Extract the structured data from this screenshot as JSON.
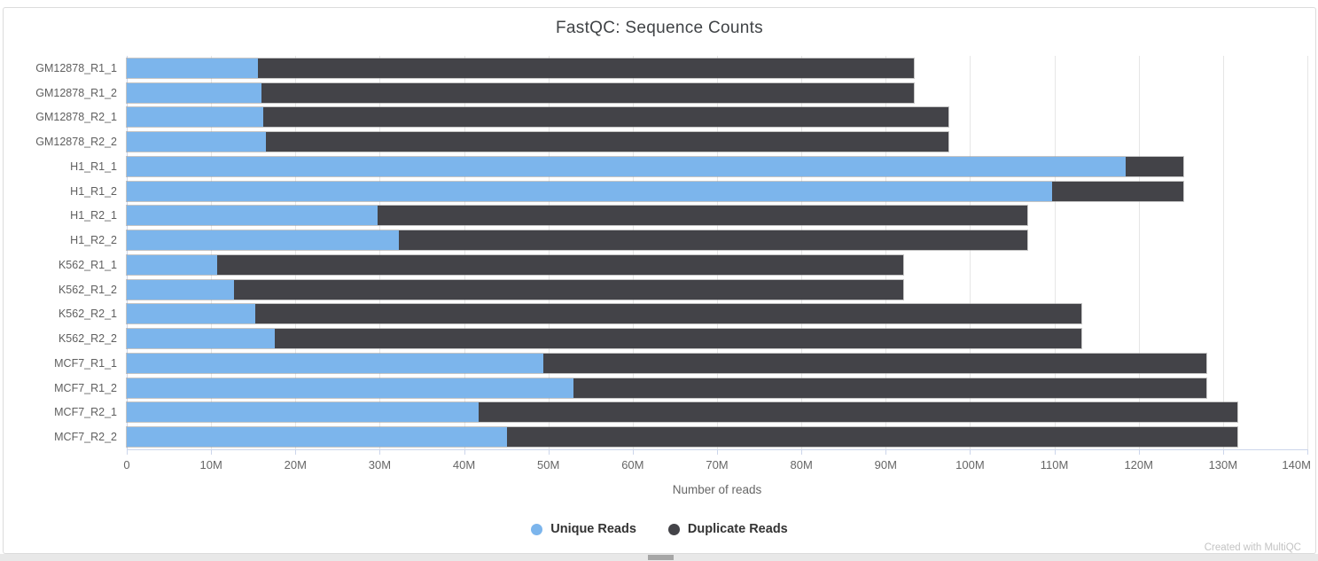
{
  "page": {
    "watermark": "Created with MultiQC"
  },
  "colors": {
    "unique_reads": "#7cb5ec",
    "duplicate_reads": "#434348",
    "gridline": "#e6e6e6",
    "axis_line": "#ccd6eb",
    "title_text": "#404346",
    "axis_text": "#666666",
    "y_label_text": "#5f5f5f",
    "legend_text": "#333333",
    "watermark_text": "#c3c3c3"
  },
  "chart_data": {
    "type": "bar",
    "orientation": "horizontal",
    "stacked": true,
    "title": "FastQC: Sequence Counts",
    "xlabel": "Number of reads",
    "ylabel": "",
    "value_unit": "millions of reads",
    "xlim_millions": [
      0,
      140
    ],
    "x_tick_interval_millions": 10,
    "x_tick_labels": [
      "0",
      "10M",
      "20M",
      "30M",
      "40M",
      "50M",
      "60M",
      "70M",
      "80M",
      "90M",
      "100M",
      "110M",
      "120M",
      "130M",
      "140M"
    ],
    "grid": true,
    "legend_position": "bottom",
    "categories": [
      "GM12878_R1_1",
      "GM12878_R1_2",
      "GM12878_R2_1",
      "GM12878_R2_2",
      "H1_R1_1",
      "H1_R1_2",
      "H1_R2_1",
      "H1_R2_2",
      "K562_R1_1",
      "K562_R1_2",
      "K562_R2_1",
      "K562_R2_2",
      "MCF7_R1_1",
      "MCF7_R1_2",
      "MCF7_R2_1",
      "MCF7_R2_2"
    ],
    "series": [
      {
        "name": "Unique Reads",
        "color": "#7cb5ec",
        "values_millions": [
          15.6,
          16.0,
          16.2,
          16.5,
          118.5,
          109.7,
          29.7,
          32.3,
          10.7,
          12.7,
          15.2,
          17.6,
          49.4,
          53.0,
          41.7,
          45.1
        ]
      },
      {
        "name": "Duplicate Reads",
        "color": "#434348",
        "values_millions": [
          77.7,
          77.3,
          81.2,
          80.9,
          6.8,
          15.6,
          77.1,
          74.5,
          81.4,
          79.4,
          98.0,
          95.6,
          78.6,
          75.0,
          90.0,
          86.6
        ]
      }
    ],
    "stack_totals_millions": [
      93.3,
      93.3,
      97.4,
      97.4,
      125.3,
      125.3,
      106.8,
      106.8,
      92.1,
      92.1,
      113.2,
      113.2,
      128.0,
      128.0,
      131.7,
      131.7
    ]
  }
}
